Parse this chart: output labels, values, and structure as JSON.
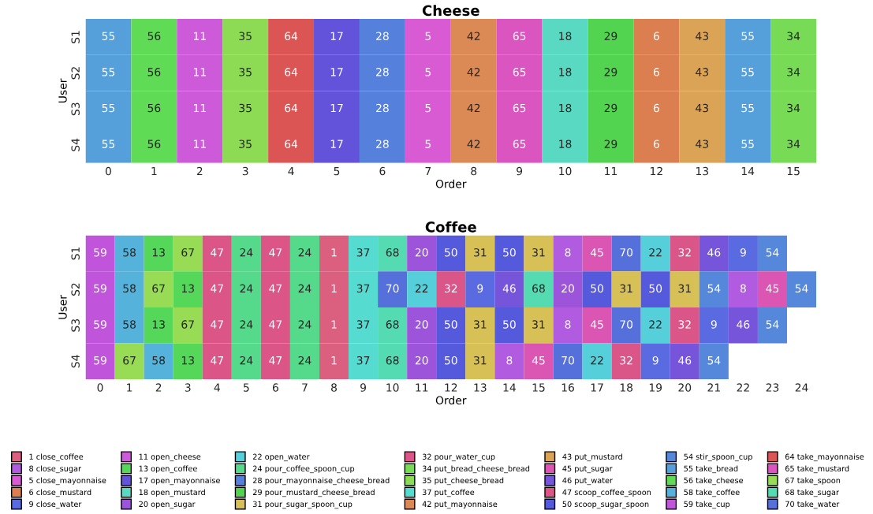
{
  "chart_data": [
    {
      "type": "heatmap",
      "title": "Cheese",
      "xlabel": "Order",
      "ylabel": "User",
      "categories": [
        "0",
        "1",
        "2",
        "3",
        "4",
        "5",
        "6",
        "7",
        "8",
        "9",
        "10",
        "11",
        "12",
        "13",
        "14",
        "15"
      ],
      "y_categories": [
        "S1",
        "S2",
        "S3",
        "S4"
      ],
      "cells": [
        [
          55,
          56,
          11,
          35,
          64,
          17,
          28,
          5,
          42,
          65,
          18,
          29,
          6,
          43,
          55,
          34
        ],
        [
          55,
          56,
          11,
          35,
          64,
          17,
          28,
          5,
          42,
          65,
          18,
          29,
          6,
          43,
          55,
          34
        ],
        [
          55,
          56,
          11,
          35,
          64,
          17,
          28,
          5,
          42,
          65,
          18,
          29,
          6,
          43,
          55,
          34
        ],
        [
          55,
          56,
          11,
          35,
          64,
          17,
          28,
          5,
          42,
          65,
          18,
          29,
          6,
          43,
          55,
          34
        ]
      ],
      "colors": [
        [
          "#55a0db",
          "#60db55",
          "#cc5ad9",
          "#8ddb55",
          "#db5555",
          "#6353db",
          "#5580db",
          "#d95bd4",
          "#db8a55",
          "#db55c0",
          "#59d9c2",
          "#52d451",
          "#db7f50",
          "#dba355",
          "#55a0db",
          "#77db55"
        ],
        [
          "#55a0db",
          "#60db55",
          "#cc5ad9",
          "#8ddb55",
          "#db5555",
          "#6353db",
          "#5580db",
          "#d95bd4",
          "#db8a55",
          "#db55c0",
          "#59d9c2",
          "#52d451",
          "#db7f50",
          "#dba355",
          "#55a0db",
          "#77db55"
        ],
        [
          "#55a0db",
          "#60db55",
          "#cc5ad9",
          "#8ddb55",
          "#db5555",
          "#6353db",
          "#5580db",
          "#d95bd4",
          "#db8a55",
          "#db55c0",
          "#59d9c2",
          "#52d451",
          "#db7f50",
          "#dba355",
          "#55a0db",
          "#77db55"
        ],
        [
          "#55a0db",
          "#60db55",
          "#cc5ad9",
          "#8ddb55",
          "#db5555",
          "#6353db",
          "#5580db",
          "#d95bd4",
          "#db8a55",
          "#db55c0",
          "#59d9c2",
          "#52d451",
          "#db7f50",
          "#dba355",
          "#55a0db",
          "#77db55"
        ]
      ],
      "data_labels": true
    },
    {
      "type": "heatmap",
      "title": "Coffee",
      "xlabel": "Order",
      "ylabel": "User",
      "categories": [
        "0",
        "1",
        "2",
        "3",
        "4",
        "5",
        "6",
        "7",
        "8",
        "9",
        "10",
        "11",
        "12",
        "13",
        "14",
        "15",
        "16",
        "17",
        "18",
        "19",
        "20",
        "21",
        "22",
        "23",
        "24"
      ],
      "y_categories": [
        "S1",
        "S2",
        "S3",
        "S4"
      ],
      "cells": [
        [
          59,
          58,
          13,
          67,
          47,
          24,
          47,
          24,
          1,
          37,
          68,
          20,
          50,
          31,
          50,
          31,
          8,
          45,
          70,
          22,
          32,
          46,
          9,
          54,
          null
        ],
        [
          59,
          58,
          67,
          13,
          47,
          24,
          47,
          24,
          1,
          37,
          70,
          22,
          32,
          9,
          46,
          68,
          20,
          50,
          31,
          50,
          31,
          54,
          8,
          45,
          54
        ],
        [
          59,
          58,
          13,
          67,
          47,
          24,
          47,
          24,
          1,
          37,
          68,
          20,
          50,
          31,
          50,
          31,
          8,
          45,
          70,
          22,
          32,
          9,
          46,
          54,
          null
        ],
        [
          59,
          67,
          58,
          13,
          47,
          24,
          47,
          24,
          1,
          37,
          68,
          20,
          50,
          31,
          8,
          45,
          70,
          22,
          32,
          9,
          46,
          54,
          null,
          null,
          null
        ]
      ],
      "colors": [
        [
          "#c055db",
          "#55b2db",
          "#55d85a",
          "#98db55",
          "#db5587",
          "#55d98a",
          "#db5587",
          "#55d98a",
          "#db5f7e",
          "#55dbcf",
          "#55dbb2",
          "#9c54da",
          "#5559db",
          "#d7c055",
          "#5559db",
          "#d7c055",
          "#b05be0",
          "#db55b2",
          "#5570db",
          "#55cfd9",
          "#db5688",
          "#7655db",
          "#5a6ae0",
          "#5587db",
          null
        ],
        [
          "#c055db",
          "#55b2db",
          "#98db55",
          "#55d85a",
          "#db5587",
          "#55d98a",
          "#db5587",
          "#55d98a",
          "#db5f7e",
          "#55dbcf",
          "#5570db",
          "#55cfd9",
          "#db5688",
          "#5a6ae0",
          "#7655db",
          "#55dbb2",
          "#9c54da",
          "#5559db",
          "#d7c055",
          "#5559db",
          "#d7c055",
          "#5587db",
          "#b05be0",
          "#db55b2",
          "#5587db"
        ],
        [
          "#c055db",
          "#55b2db",
          "#55d85a",
          "#98db55",
          "#db5587",
          "#55d98a",
          "#db5587",
          "#55d98a",
          "#db5f7e",
          "#55dbcf",
          "#55dbb2",
          "#9c54da",
          "#5559db",
          "#d7c055",
          "#5559db",
          "#d7c055",
          "#b05be0",
          "#db55b2",
          "#5570db",
          "#55cfd9",
          "#db5688",
          "#5a6ae0",
          "#7655db",
          "#5587db",
          null
        ],
        [
          "#c055db",
          "#98db55",
          "#55b2db",
          "#55d85a",
          "#db5587",
          "#55d98a",
          "#db5587",
          "#55d98a",
          "#db5f7e",
          "#55dbcf",
          "#55dbb2",
          "#9c54da",
          "#5559db",
          "#d7c055",
          "#b05be0",
          "#db55b2",
          "#5570db",
          "#55cfd9",
          "#db5688",
          "#5a6ae0",
          "#7655db",
          "#5587db",
          null,
          null,
          null
        ]
      ],
      "data_labels": true
    },
    {
      "type": "other",
      "legend": "bottom",
      "series": [
        {
          "name": "1 close_coffee",
          "color": "#db5f7e"
        },
        {
          "name": "8 close_sugar",
          "color": "#b05be0"
        },
        {
          "name": "5 close_mayonnaise",
          "color": "#d95bd4"
        },
        {
          "name": "6 close_mustard",
          "color": "#db7f50"
        },
        {
          "name": "9 close_water",
          "color": "#5a6ae0"
        },
        {
          "name": "11 open_cheese",
          "color": "#cc5ad9"
        },
        {
          "name": "13 open_coffee",
          "color": "#55d85a"
        },
        {
          "name": "17 open_mayonnaise",
          "color": "#6353db"
        },
        {
          "name": "18 open_mustard",
          "color": "#59d9c2"
        },
        {
          "name": "20 open_sugar",
          "color": "#9c54da"
        },
        {
          "name": "22 open_water",
          "color": "#55cfd9"
        },
        {
          "name": "24 pour_coffee_spoon_cup",
          "color": "#55d98a"
        },
        {
          "name": "28 pour_mayonnaise_cheese_bread",
          "color": "#5580db"
        },
        {
          "name": "29 pour_mustard_cheese_bread",
          "color": "#52d451"
        },
        {
          "name": "31 pour_sugar_spoon_cup",
          "color": "#d7c055"
        },
        {
          "name": "32 pour_water_cup",
          "color": "#db5688"
        },
        {
          "name": "34 put_bread_cheese_bread",
          "color": "#77db55"
        },
        {
          "name": "35 put_cheese_bread",
          "color": "#8ddb55"
        },
        {
          "name": "37 put_coffee",
          "color": "#55dbcf"
        },
        {
          "name": "42 put_mayonnaise",
          "color": "#db8a55"
        },
        {
          "name": "43 put_mustard",
          "color": "#dba355"
        },
        {
          "name": "45 put_sugar",
          "color": "#db55b2"
        },
        {
          "name": "46 put_water",
          "color": "#7655db"
        },
        {
          "name": "47 scoop_coffee_spoon",
          "color": "#db5587"
        },
        {
          "name": "50 scoop_sugar_spoon",
          "color": "#5559db"
        },
        {
          "name": "54 stir_spoon_cup",
          "color": "#5587db"
        },
        {
          "name": "55 take_bread",
          "color": "#55a0db"
        },
        {
          "name": "56 take_cheese",
          "color": "#60db55"
        },
        {
          "name": "58 take_coffee",
          "color": "#55b2db"
        },
        {
          "name": "59 take_cup",
          "color": "#c055db"
        },
        {
          "name": "64 take_mayonnaise",
          "color": "#db5555"
        },
        {
          "name": "65 take_mustard",
          "color": "#db55c0"
        },
        {
          "name": "67 take_spoon",
          "color": "#98db55"
        },
        {
          "name": "68 take_sugar",
          "color": "#55dbb2"
        },
        {
          "name": "70 take_water",
          "color": "#5570db"
        }
      ]
    }
  ]
}
